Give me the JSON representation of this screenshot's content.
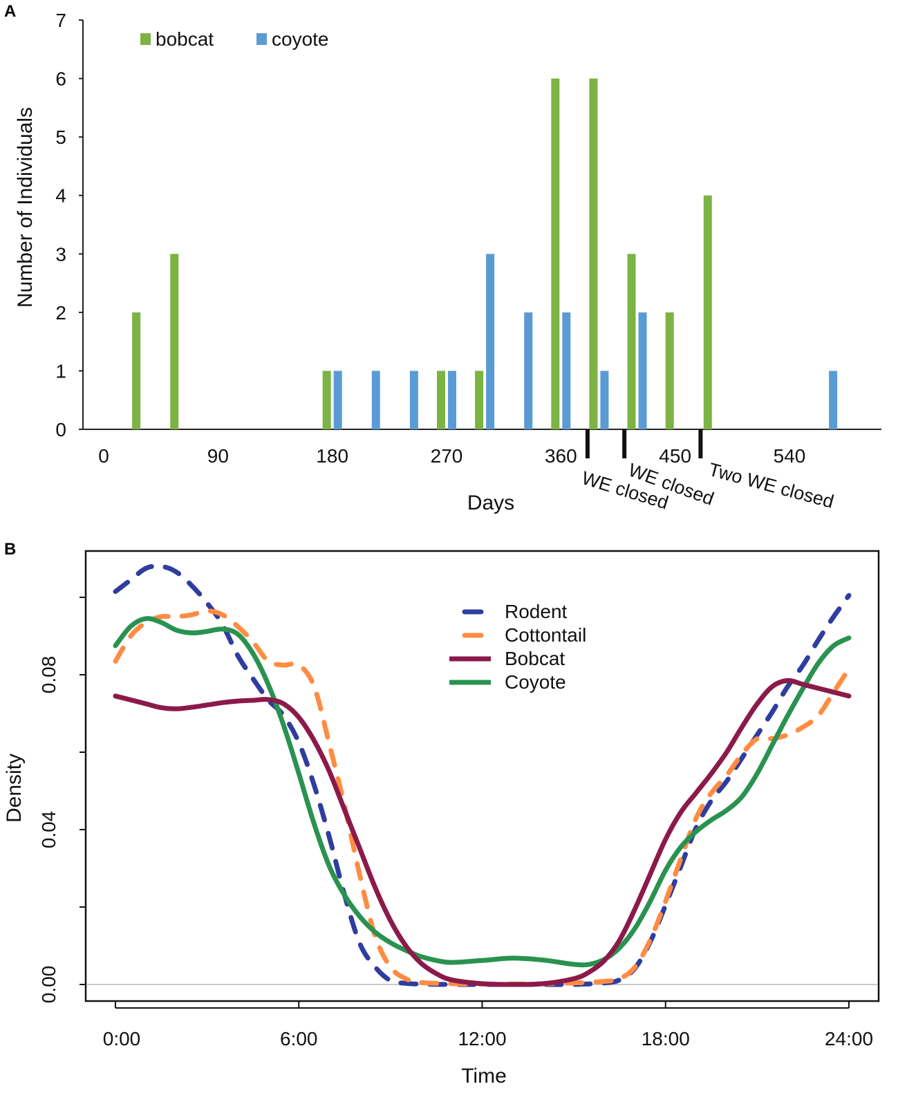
{
  "chart_data": [
    {
      "type": "bar",
      "panel_label": "A",
      "title": "",
      "xlabel": "Days",
      "ylabel": "Number of Individuals",
      "xlim": [
        0,
        615
      ],
      "ylim": [
        0,
        7
      ],
      "xticks": [
        0,
        90,
        180,
        270,
        360,
        450,
        540
      ],
      "yticks": [
        0,
        1,
        2,
        3,
        4,
        5,
        6,
        7
      ],
      "legend": [
        "bobcat",
        "coyote"
      ],
      "legend_position": "top-left",
      "colors": {
        "bobcat": "#7cb342",
        "coyote": "#5b9bd5"
      },
      "series": [
        {
          "name": "bobcat",
          "x": [
            30,
            60,
            180,
            270,
            300,
            360,
            390,
            420,
            450,
            480
          ],
          "values": [
            2,
            3,
            1,
            1,
            1,
            6,
            6,
            3,
            2,
            4
          ]
        },
        {
          "name": "coyote",
          "x": [
            180,
            210,
            240,
            270,
            300,
            330,
            360,
            390,
            420,
            570
          ],
          "values": [
            1,
            1,
            1,
            1,
            3,
            2,
            2,
            1,
            2,
            1
          ]
        }
      ],
      "annotations": [
        {
          "day": 381,
          "text": "WE closed"
        },
        {
          "day": 410,
          "text": "WE closed"
        },
        {
          "day": 470,
          "text": "Two WE closed"
        }
      ]
    },
    {
      "type": "line",
      "panel_label": "B",
      "title": "",
      "xlabel": "Time",
      "ylabel": "Density",
      "xlim": [
        0,
        24
      ],
      "ylim": [
        0,
        0.11
      ],
      "xticks": [
        0,
        6,
        12,
        18,
        24
      ],
      "xtick_labels": [
        "0:00",
        "6:00",
        "12:00",
        "18:00",
        "24:00"
      ],
      "yticks": [
        0,
        0.02,
        0.04,
        0.06,
        0.08,
        0.1
      ],
      "ytick_labels": [
        "0.00",
        "",
        "0.04",
        "",
        "0.08",
        ""
      ],
      "legend_position": "top-center",
      "series": [
        {
          "name": "Rodent",
          "color": "#2e3d9f",
          "dash": true,
          "x": [
            0,
            0.5,
            1,
            1.5,
            2,
            2.5,
            3,
            3.5,
            4,
            4.5,
            5,
            5.5,
            6,
            6.5,
            7,
            7.5,
            8,
            8.5,
            9,
            9.5,
            10,
            11,
            12,
            13,
            14,
            15,
            16,
            16.5,
            17,
            17.5,
            18,
            18.5,
            19,
            19.5,
            20,
            20.5,
            21,
            21.5,
            22,
            22.5,
            23,
            23.5,
            24
          ],
          "y": [
            0.1015,
            0.1045,
            0.1075,
            0.108,
            0.1065,
            0.103,
            0.0985,
            0.093,
            0.085,
            0.079,
            0.0735,
            0.0695,
            0.0625,
            0.0515,
            0.038,
            0.023,
            0.0105,
            0.0045,
            0.001,
            0.0003,
            0.0001,
            0.0,
            0.0,
            0.0,
            0.0,
            0.0,
            0.0004,
            0.0012,
            0.0042,
            0.011,
            0.0205,
            0.0305,
            0.0405,
            0.0475,
            0.0525,
            0.0585,
            0.0645,
            0.0705,
            0.077,
            0.0825,
            0.089,
            0.095,
            0.1005
          ]
        },
        {
          "name": "Cottontail",
          "color": "#ff8c42",
          "dash": true,
          "x": [
            0,
            0.5,
            1,
            1.5,
            2,
            2.5,
            3,
            3.5,
            4,
            4.5,
            5,
            5.5,
            6,
            6.5,
            7,
            7.5,
            8,
            8.5,
            9,
            9.5,
            10,
            11,
            12,
            13,
            14,
            15,
            16,
            16.5,
            17,
            17.5,
            18,
            18.5,
            19,
            19.5,
            20,
            20.5,
            21,
            21.5,
            22,
            22.5,
            23,
            23.5,
            24
          ],
          "y": [
            0.0835,
            0.09,
            0.0935,
            0.095,
            0.095,
            0.0955,
            0.0965,
            0.0955,
            0.0925,
            0.0885,
            0.0835,
            0.0825,
            0.0825,
            0.077,
            0.062,
            0.046,
            0.028,
            0.0125,
            0.0045,
            0.0015,
            0.0005,
            0.0002,
            0.0001,
            0.0001,
            0.0002,
            0.0004,
            0.0008,
            0.0015,
            0.0045,
            0.0115,
            0.0215,
            0.0325,
            0.043,
            0.0495,
            0.054,
            0.0595,
            0.0635,
            0.0635,
            0.0645,
            0.0665,
            0.0695,
            0.0755,
            0.0815
          ]
        },
        {
          "name": "Bobcat",
          "color": "#8b1a4a",
          "dash": false,
          "x": [
            0,
            0.5,
            1,
            1.5,
            2,
            2.5,
            3,
            3.5,
            4,
            4.5,
            5,
            5.5,
            6,
            6.5,
            7,
            7.5,
            8,
            8.5,
            9,
            9.5,
            10,
            10.5,
            11,
            12,
            13,
            14,
            15,
            15.5,
            16,
            16.5,
            17,
            17.5,
            18,
            18.5,
            19,
            19.5,
            20,
            20.5,
            21,
            21.5,
            22,
            22.5,
            23,
            23.5,
            24
          ],
          "y": [
            0.0745,
            0.0735,
            0.0725,
            0.0715,
            0.0712,
            0.0716,
            0.0722,
            0.0728,
            0.0732,
            0.0734,
            0.0736,
            0.0725,
            0.069,
            0.063,
            0.055,
            0.045,
            0.035,
            0.025,
            0.0165,
            0.01,
            0.0055,
            0.0028,
            0.0012,
            0.0002,
            0.0,
            0.0002,
            0.0015,
            0.0032,
            0.0062,
            0.0115,
            0.0195,
            0.0285,
            0.0375,
            0.0445,
            0.0495,
            0.0545,
            0.06,
            0.0665,
            0.0725,
            0.077,
            0.0785,
            0.0775,
            0.0765,
            0.0755,
            0.0745
          ]
        },
        {
          "name": "Coyote",
          "color": "#2a9250",
          "dash": false,
          "x": [
            0,
            0.5,
            1,
            1.5,
            2,
            2.5,
            3,
            3.5,
            4,
            4.5,
            5,
            5.5,
            6,
            6.5,
            7,
            7.5,
            8,
            8.5,
            9,
            9.5,
            10,
            10.5,
            11,
            12,
            13,
            14,
            15,
            15.5,
            16,
            16.5,
            17,
            17.5,
            18,
            18.5,
            19,
            19.5,
            20,
            20.5,
            21,
            21.5,
            22,
            22.5,
            23,
            23.5,
            24
          ],
          "y": [
            0.0875,
            0.0925,
            0.0945,
            0.0935,
            0.0915,
            0.0908,
            0.0912,
            0.0918,
            0.0905,
            0.0855,
            0.0775,
            0.067,
            0.0545,
            0.0415,
            0.0305,
            0.023,
            0.0175,
            0.0135,
            0.0108,
            0.0088,
            0.0072,
            0.0062,
            0.0057,
            0.0062,
            0.0068,
            0.0063,
            0.0052,
            0.0052,
            0.0065,
            0.0095,
            0.0145,
            0.0215,
            0.0295,
            0.0355,
            0.0395,
            0.0425,
            0.045,
            0.0485,
            0.0545,
            0.062,
            0.0695,
            0.0765,
            0.083,
            0.0875,
            0.0895
          ]
        }
      ]
    }
  ]
}
